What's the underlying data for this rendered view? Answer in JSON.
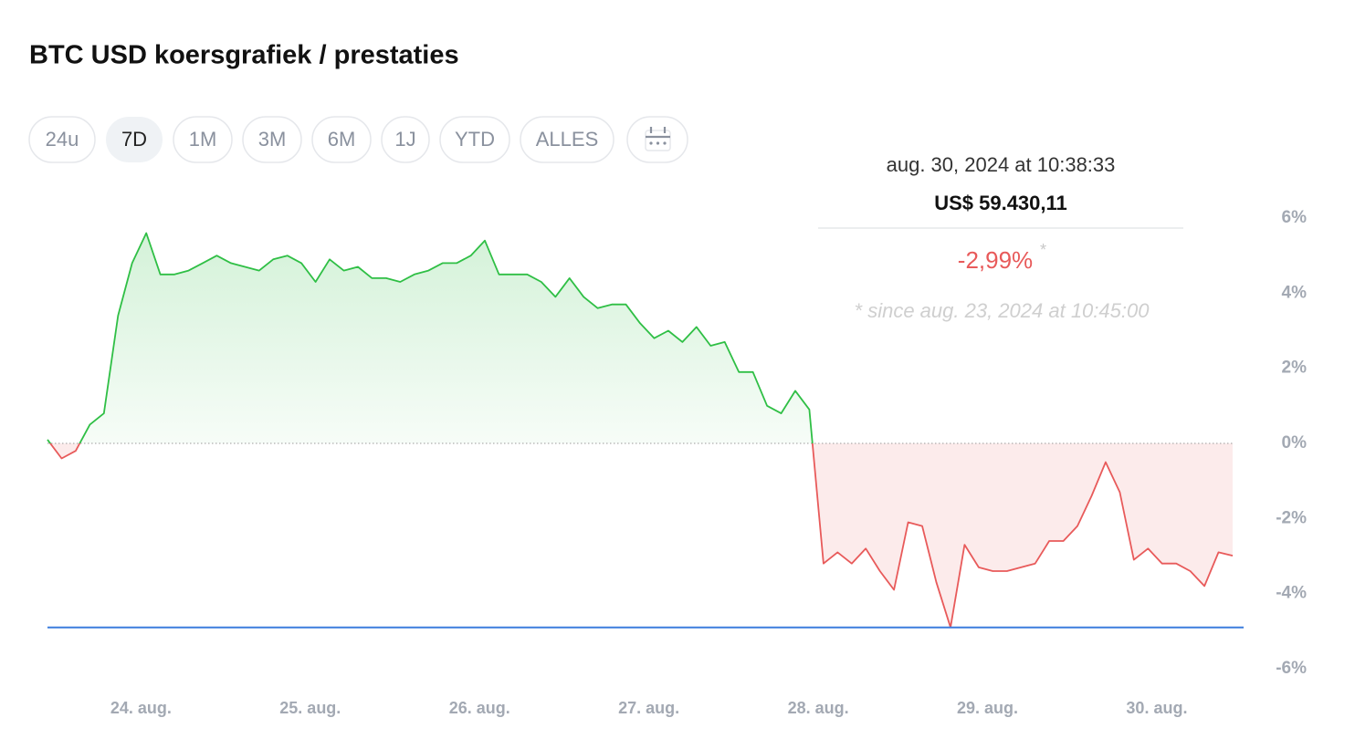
{
  "header": {
    "title": "BTC USD koersgrafiek / prestaties"
  },
  "range_buttons": [
    "24u",
    "7D",
    "1M",
    "3M",
    "6M",
    "1J",
    "YTD",
    "ALLES"
  ],
  "selected_button": 1,
  "tooltip": {
    "date": "aug. 30, 2024 at 10:38:33",
    "price": "US$ 59.430,11",
    "change": "-2,99%",
    "marker": "*",
    "note": "* since aug. 23, 2024 at 10:45:00"
  },
  "chart_data": {
    "type": "line",
    "x": [
      0,
      2,
      4,
      6,
      8,
      10,
      12,
      14,
      16,
      18,
      20,
      22,
      24,
      26,
      28,
      30,
      32,
      34,
      36,
      38,
      40,
      42,
      44,
      46,
      48,
      50,
      52,
      54,
      56,
      58,
      60,
      62,
      64,
      66,
      68,
      70,
      72,
      74,
      76,
      78,
      80,
      82,
      84,
      86,
      88,
      90,
      92,
      94,
      96,
      98,
      100,
      102,
      104,
      106,
      108,
      110,
      112,
      114,
      116,
      118,
      120,
      122,
      124,
      126,
      128,
      130,
      132,
      134,
      136,
      138,
      140,
      142,
      144,
      146,
      148,
      150,
      152,
      154,
      156,
      158,
      160,
      162,
      164,
      166,
      168
    ],
    "values": [
      0.1,
      -0.4,
      -0.2,
      0.5,
      0.8,
      3.4,
      4.8,
      5.6,
      4.5,
      4.5,
      4.6,
      4.8,
      5.0,
      4.8,
      4.7,
      4.6,
      4.9,
      5.0,
      4.8,
      4.3,
      4.9,
      4.6,
      4.7,
      4.4,
      4.4,
      4.3,
      4.5,
      4.6,
      4.8,
      4.8,
      5.0,
      5.4,
      4.5,
      4.5,
      4.5,
      4.3,
      3.9,
      4.4,
      3.9,
      3.6,
      3.7,
      3.7,
      3.2,
      2.8,
      3.0,
      2.7,
      3.1,
      2.6,
      2.7,
      1.9,
      1.9,
      1.0,
      0.8,
      1.4,
      0.9,
      -3.2,
      -2.9,
      -3.2,
      -2.8,
      -3.4,
      -3.9,
      -2.1,
      -2.2,
      -3.7,
      -4.9,
      -2.7,
      -3.3,
      -3.4,
      -3.4,
      -3.3,
      -3.2,
      -2.6,
      -2.6,
      -2.2,
      -1.4,
      -0.5,
      -1.3,
      -3.1,
      -2.8,
      -3.2,
      -3.2,
      -3.4,
      -3.8,
      -2.9,
      -2.99
    ],
    "up_color": "#2fbf45",
    "down_color": "#e85a5a",
    "xlim": [
      0,
      168
    ],
    "xticks": [
      {
        "value": 13.25,
        "label": "24. aug."
      },
      {
        "value": 37.25,
        "label": "25. aug."
      },
      {
        "value": 61.25,
        "label": "26. aug."
      },
      {
        "value": 85.25,
        "label": "27. aug."
      },
      {
        "value": 109.25,
        "label": "28. aug."
      },
      {
        "value": 133.25,
        "label": "29. aug."
      },
      {
        "value": 157.25,
        "label": "30. aug."
      }
    ],
    "ylim": [
      -6,
      6
    ],
    "yticks": [
      {
        "value": 6,
        "label": "6%"
      },
      {
        "value": 4,
        "label": "4%"
      },
      {
        "value": 2,
        "label": "2%"
      },
      {
        "value": 0,
        "label": "0%"
      },
      {
        "value": -2,
        "label": "-2%"
      },
      {
        "value": -4,
        "label": "-4%"
      },
      {
        "value": -6,
        "label": "-6%"
      }
    ],
    "reference_line": {
      "value": -4.9,
      "color": "#3b7ddd"
    }
  }
}
